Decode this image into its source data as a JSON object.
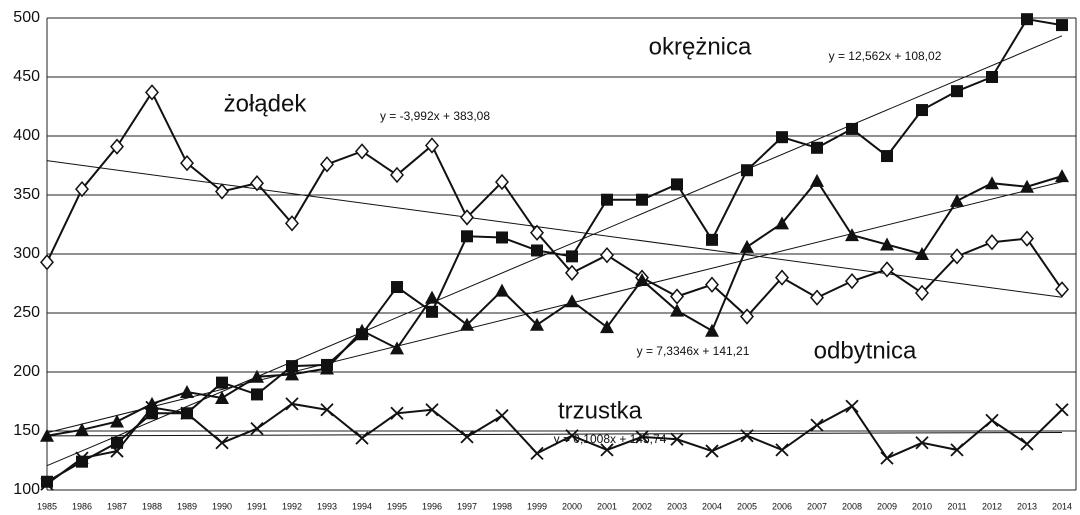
{
  "chart_data": {
    "type": "line",
    "categories": [
      "1985",
      "1986",
      "1987",
      "1988",
      "1989",
      "1990",
      "1991",
      "1992",
      "1993",
      "1994",
      "1995",
      "1996",
      "1997",
      "1998",
      "1999",
      "2000",
      "2001",
      "2002",
      "2003",
      "2004",
      "2005",
      "2006",
      "2007",
      "2008",
      "2009",
      "2010",
      "2011",
      "2012",
      "2013",
      "2014"
    ],
    "ylim": [
      100,
      500
    ],
    "yticks": [
      100,
      150,
      200,
      250,
      300,
      350,
      400,
      450,
      500
    ],
    "grid": true,
    "series": [
      {
        "name": "okrężnica",
        "color": "#111111",
        "marker": "square",
        "values": [
          107,
          124,
          140,
          165,
          165,
          191,
          181,
          205,
          206,
          232,
          272,
          251,
          315,
          314,
          303,
          298,
          346,
          346,
          359,
          312,
          371,
          399,
          390,
          406,
          383,
          422,
          438,
          450,
          499,
          494
        ],
        "trend": {
          "slope": 12.562,
          "intercept": 108.02,
          "label": "y = 12,562x + 108,02"
        }
      },
      {
        "name": "żołądek",
        "color": "#111111",
        "marker": "diamond",
        "values": [
          293,
          355,
          391,
          437,
          377,
          353,
          360,
          326,
          376,
          387,
          367,
          392,
          331,
          361,
          318,
          284,
          299,
          280,
          264,
          274,
          247,
          280,
          263,
          277,
          287,
          267,
          298,
          310,
          313,
          270
        ],
        "trend": {
          "slope": -3.992,
          "intercept": 383.08,
          "label": "y = -3,992x + 383,08"
        }
      },
      {
        "name": "odbytnica",
        "color": "#111111",
        "marker": "triangle",
        "values": [
          146,
          151,
          158,
          173,
          183,
          178,
          196,
          198,
          203,
          235,
          220,
          263,
          240,
          269,
          240,
          260,
          238,
          278,
          252,
          235,
          306,
          326,
          362,
          316,
          308,
          300,
          345,
          360,
          357,
          366
        ],
        "trend": {
          "slope": 7.3346,
          "intercept": 141.21,
          "label": "y = 7,3346x + 141,21"
        }
      },
      {
        "name": "trzustka",
        "color": "#111111",
        "marker": "cross",
        "values": [
          105,
          127,
          133,
          170,
          165,
          140,
          152,
          173,
          168,
          144,
          165,
          168,
          145,
          163,
          131,
          146,
          134,
          145,
          143,
          133,
          146,
          134,
          155,
          171,
          127,
          140,
          134,
          159,
          139,
          168
        ],
        "trend": {
          "slope": 0.1008,
          "intercept": 145.74,
          "label": "y = 0,1008x + 145,74"
        }
      }
    ]
  }
}
